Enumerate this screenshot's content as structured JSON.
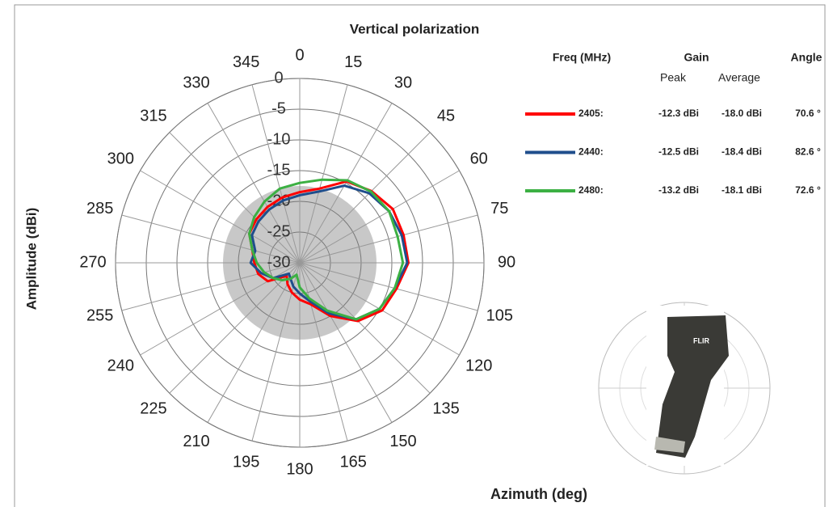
{
  "chart_data": {
    "type": "polar-line",
    "title": "Vertical polarization",
    "y_label": "Amplitude (dBi)",
    "x_label": "Azimuth (deg)",
    "rlim": [
      -30,
      0
    ],
    "rticks": [
      -30,
      -25,
      -20,
      -15,
      -10,
      -5,
      0
    ],
    "thetaticks": [
      0,
      15,
      30,
      45,
      60,
      75,
      90,
      105,
      120,
      135,
      150,
      165,
      180,
      195,
      210,
      225,
      240,
      255,
      270,
      285,
      300,
      315,
      330,
      345
    ],
    "x": [
      0,
      15,
      30,
      45,
      60,
      75,
      90,
      105,
      120,
      135,
      150,
      165,
      180,
      195,
      210,
      225,
      240,
      255,
      270,
      285,
      300,
      315,
      330,
      345
    ],
    "series": [
      {
        "name": "2405:",
        "color": "#ff0000",
        "values": [
          -18.5,
          -17.5,
          -14.7,
          -13.5,
          -12.5,
          -12.5,
          -12.3,
          -13.7,
          -14.5,
          -16.6,
          -20,
          -23,
          -24,
          -25,
          -26,
          -27,
          -24,
          -23,
          -22.6,
          -22,
          -20.5,
          -20,
          -19.5,
          -19
        ]
      },
      {
        "name": "2440:",
        "color": "#1f4e8c",
        "values": [
          -19,
          -18,
          -15.5,
          -14,
          -13.2,
          -12.8,
          -12.5,
          -14,
          -15,
          -17,
          -20.5,
          -23.5,
          -25,
          -26,
          -27,
          -27.5,
          -25,
          -23.5,
          -22,
          -22.5,
          -21,
          -20.5,
          -20,
          -19.5
        ]
      },
      {
        "name": "2480:",
        "color": "#3cb043",
        "values": [
          -17,
          -16,
          -14.5,
          -13.6,
          -13.2,
          -13.5,
          -13.2,
          -14,
          -15,
          -17,
          -21,
          -24,
          -26,
          -28,
          -27,
          -26,
          -25,
          -24,
          -23,
          -22,
          -20.5,
          -19.5,
          -18.5,
          -17.5
        ]
      }
    ],
    "legend_table": {
      "headers": [
        "Freq (MHz)",
        "Gain",
        "Angle"
      ],
      "subheaders": [
        "Peak",
        "Average"
      ],
      "rows": [
        [
          "-12.3 dBi",
          "-18.0 dBi",
          "70.6 °"
        ],
        [
          "-12.5 dBi",
          "-18.4 dBi",
          "82.6 °"
        ],
        [
          "-13.2 dBi",
          "-18.1 dBi",
          "72.6 °"
        ]
      ]
    },
    "inset_label": "FLIR"
  }
}
